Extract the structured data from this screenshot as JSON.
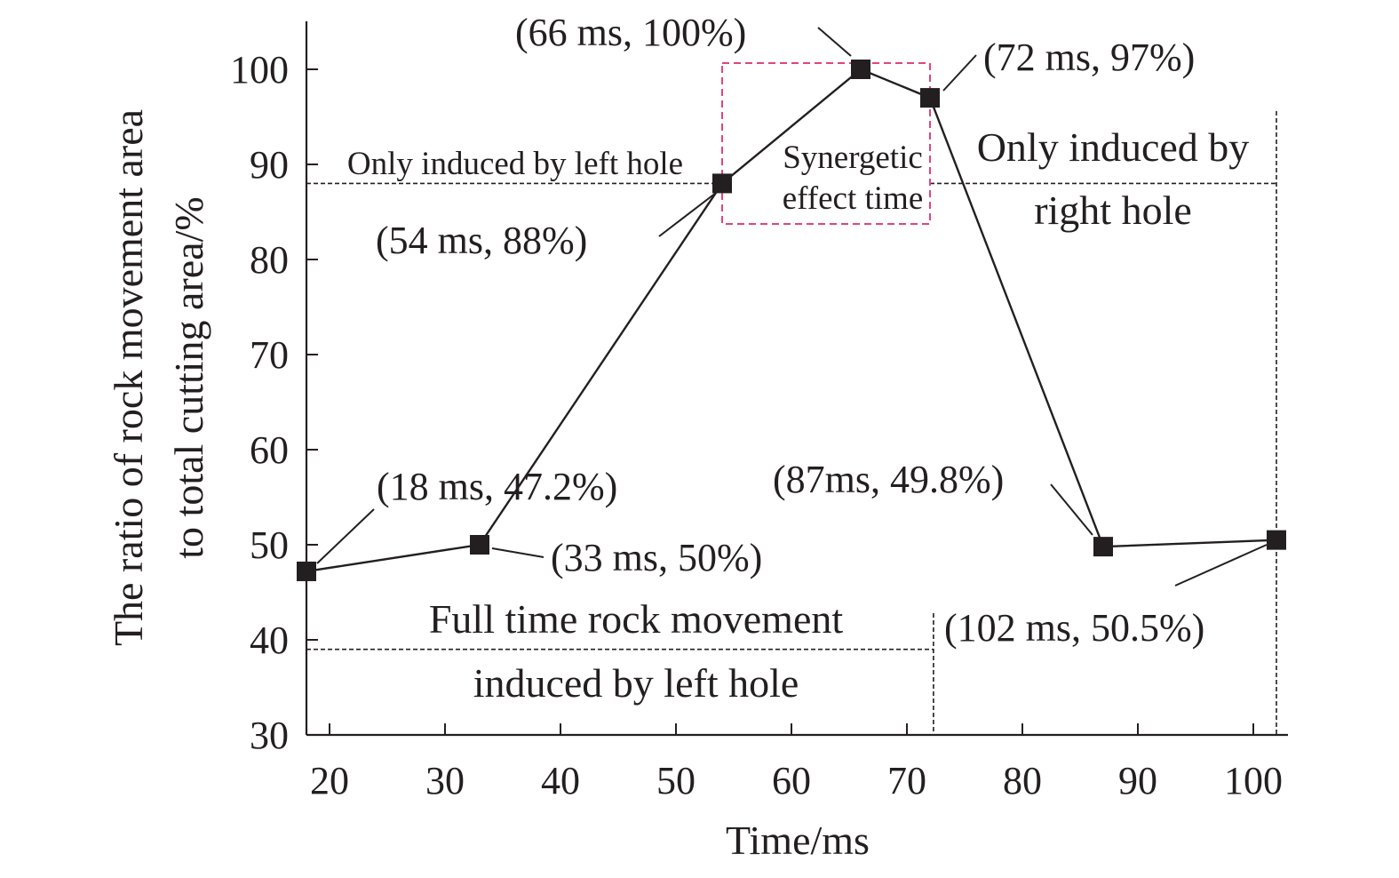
{
  "chart_data": {
    "type": "line",
    "xlabel": "Time/ms",
    "ylabel_lines": [
      "The ratio of rock movement area",
      "to total cutting area/%"
    ],
    "xlim": [
      18,
      104
    ],
    "ylim": [
      30,
      104
    ],
    "xticks": [
      20,
      30,
      40,
      50,
      60,
      70,
      80,
      90,
      100
    ],
    "yticks": [
      30,
      40,
      50,
      60,
      70,
      80,
      90,
      100
    ],
    "grid": false,
    "series": [
      {
        "x": [
          18,
          33,
          54,
          66,
          72,
          87,
          102
        ],
        "y": [
          47.2,
          50,
          88,
          100,
          97,
          49.8,
          50.5
        ],
        "marker": "square",
        "color": "#231f20"
      }
    ],
    "point_labels": [
      {
        "text": "(18 ms, 47.2%)"
      },
      {
        "text": "(33 ms, 50%)"
      },
      {
        "text": "(54 ms, 88%)"
      },
      {
        "text": "(66 ms, 100%)"
      },
      {
        "text": "(72 ms, 97%)"
      },
      {
        "text": "(87ms, 49.8%)"
      },
      {
        "text": "(102 ms, 50.5%)"
      }
    ],
    "annotations": {
      "left_only": "Only induced by left hole",
      "synergetic": [
        "Synergetic",
        "effect time"
      ],
      "right_only": [
        "Only induced by",
        "right hole"
      ],
      "full_time": [
        "Full time rock movement",
        "induced by left hole"
      ]
    },
    "synergy_box": {
      "x_range": [
        54,
        72
      ],
      "color": "#e0457b"
    }
  }
}
